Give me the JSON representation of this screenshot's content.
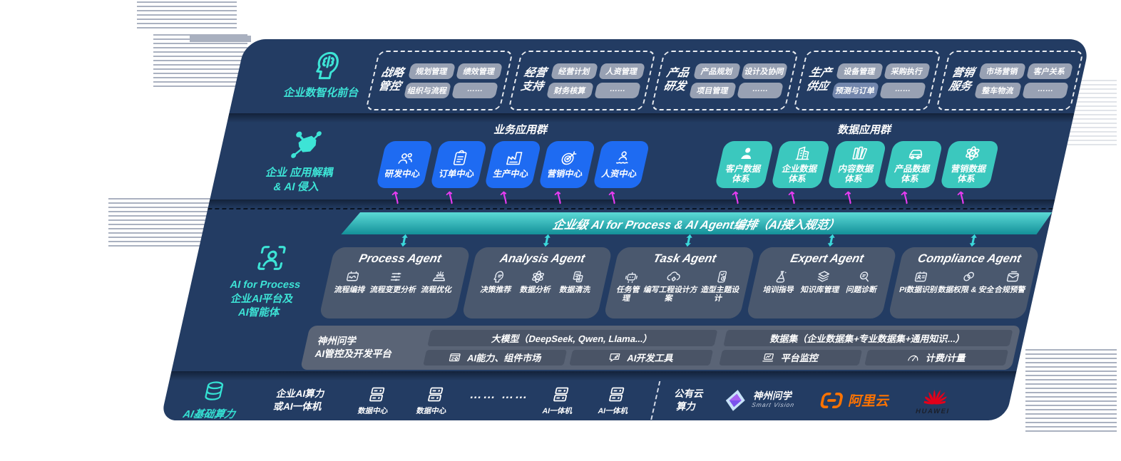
{
  "panel": {
    "front_office": {
      "label": "企业数智化前台",
      "groups": [
        {
          "t1": "战略",
          "t2": "管控",
          "chips": [
            "规划管理",
            "绩效管理",
            "组织与流程",
            "……"
          ]
        },
        {
          "t1": "经营",
          "t2": "支持",
          "chips": [
            "经营计划",
            "人资管理",
            "财务核算",
            "……"
          ]
        },
        {
          "t1": "产品",
          "t2": "研发",
          "chips": [
            "产品规划",
            "设计及协同",
            "项目管理",
            "……"
          ]
        },
        {
          "t1": "生产",
          "t2": "供应",
          "chips": [
            "设备管理",
            "采购执行",
            "预测与订单",
            "……"
          ]
        },
        {
          "t1": "营销",
          "t2": "服务",
          "chips": [
            "市场营销",
            "客户关系",
            "整车物流",
            "……"
          ]
        }
      ]
    },
    "app_layer": {
      "label_line1": "企业 应用解耦",
      "label_line2": "& AI 侵入",
      "business_title": "业务应用群",
      "business_apps": [
        {
          "label": "研发中心"
        },
        {
          "label": "订单中心"
        },
        {
          "label": "生产中心"
        },
        {
          "label": "营销中心"
        },
        {
          "label": "人资中心"
        }
      ],
      "data_title": "数据应用群",
      "data_apps": [
        {
          "l1": "客户数据",
          "l2": "体系"
        },
        {
          "l1": "企业数据",
          "l2": "体系"
        },
        {
          "l1": "内容数据",
          "l2": "体系"
        },
        {
          "l1": "产品数据",
          "l2": "体系"
        },
        {
          "l1": "营销数据",
          "l2": "体系"
        }
      ]
    },
    "banner": "企业级 AI for Process & AI Agent编排（AI接入规范）",
    "ai_layer": {
      "label_line1": "AI for Process",
      "label_line2": "企业AI平台及",
      "label_line3": "AI智能体",
      "agents": [
        {
          "title": "Process Agent",
          "items": [
            "流程编排",
            "流程变更分析",
            "流程优化"
          ]
        },
        {
          "title": "Analysis Agent",
          "items": [
            "决策推荐",
            "数据分析",
            "数据清洗"
          ]
        },
        {
          "title": "Task Agent",
          "items": [
            "任务管理",
            "编写工程设计方案",
            "造型主题设计"
          ]
        },
        {
          "title": "Expert Agent",
          "items": [
            "培训指导",
            "知识库管理",
            "问题诊断"
          ]
        },
        {
          "title": "Compliance Agent",
          "items": [
            "PI数据识别",
            "数据权限 & 安全",
            "合规预警"
          ]
        }
      ],
      "platform": {
        "name_line1": "神州问学",
        "name_line2": "AI管控及开发平台",
        "models_bar": "大模型（DeepSeek, Qwen, Llama...）",
        "left_cells": [
          "AI能力、组件市场",
          "AI开发工具"
        ],
        "datasets_bar": "数据集（企业数据集+专业数据集+通用知识...）",
        "right_cells": [
          "平台监控",
          "计费/计量"
        ]
      }
    },
    "infra_layer": {
      "label": "AI基础算力",
      "compute_line1": "企业AI算力",
      "compute_line2": "或AI一体机",
      "nodes": [
        {
          "label": "数据中心"
        },
        {
          "label": "数据中心"
        },
        {
          "label": "AI一体机"
        },
        {
          "label": "AI一体机"
        }
      ],
      "dots": "…… ……",
      "cloud_line1": "公有云",
      "cloud_line2": "算力",
      "vendors": {
        "szwx_name": "神州问学",
        "szwx_sub": "Smart Vision",
        "ali": "阿里云",
        "huawei": "HUAWEI"
      }
    },
    "colors": {
      "panel_bg": "#233c63",
      "blue_box": "#1e6bf2",
      "teal_box": "#3bc8be",
      "banner_teal": "#2fbdbd",
      "accent_teal": "#35e2d4",
      "magenta_arrow": "#e73cf2",
      "ali_orange": "#ff7300",
      "huawei_red": "#e2001a"
    }
  }
}
